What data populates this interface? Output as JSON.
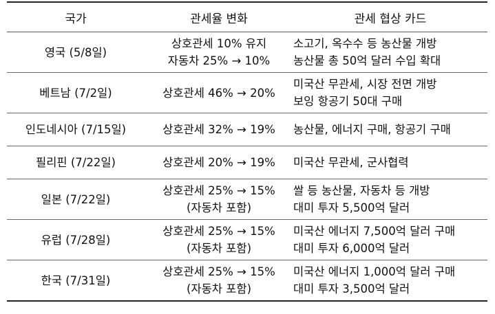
{
  "table": {
    "headers": [
      "국가",
      "관세율 변화",
      "관세 협상 카드"
    ],
    "rows": [
      {
        "country": "영국 (5/8일)",
        "change": [
          "상호관세 10% 유지",
          "자동차 25% → 10%"
        ],
        "card": [
          "소고기, 옥수수 등 농산물 개방",
          "농산물 총 50억 달러 수입 확대"
        ]
      },
      {
        "country": "베트남 (7/2일)",
        "change": [
          "상호관세 46% → 20%"
        ],
        "card": [
          "미국산 무관세, 시장 전면 개방",
          "보잉 항공기 50대 구매"
        ]
      },
      {
        "country": "인도네시아 (7/15일)",
        "change": [
          "상호관세 32% → 19%"
        ],
        "card": [
          "농산물, 에너지 구매, 항공기 구매"
        ]
      },
      {
        "country": "필리핀 (7/22일)",
        "change": [
          "상호관세 20% → 19%"
        ],
        "card": [
          "미국산 무관세, 군사협력"
        ]
      },
      {
        "country": "일본 (7/22일)",
        "change": [
          "상호관세 25% → 15%",
          "(자동차 포함)"
        ],
        "card": [
          "쌀 등 농산물, 자동차 등 개방",
          "대미 투자 5,500억 달러"
        ]
      },
      {
        "country": "유럽 (7/28일)",
        "change": [
          "상호관세 25% → 15%",
          "(자동차 포함)"
        ],
        "card": [
          "미국산 에너지 7,500억 달러 구매",
          "대미 투자 6,000억 달러"
        ]
      },
      {
        "country": "한국 (7/31일)",
        "change": [
          "상호관세 25% → 15%",
          "(자동차 포함)"
        ],
        "card": [
          "미국산 에너지 1,000억 달러 구매",
          "대미 투자 3,500억 달러"
        ]
      }
    ]
  }
}
